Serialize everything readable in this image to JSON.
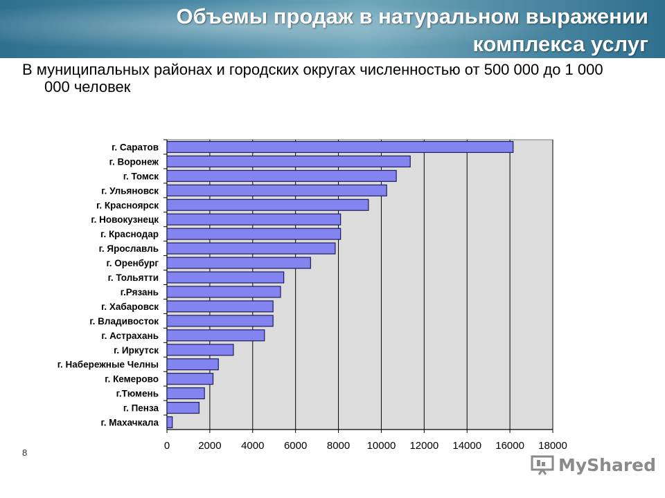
{
  "slide": {
    "title_line1": "Объемы продаж в натуральном выражении",
    "title_line2": "комплекса услуг",
    "subtitle": "В муниципальных районах и городских округах численностью от 500 000 до 1 000 000 человек",
    "page_number": "8",
    "watermark": "MyShared"
  },
  "colors": {
    "bar_fill": "#8484f0",
    "bar_stroke": "#1c1c5a",
    "plot_bg": "#dcdcdc",
    "header_accent": "#2e6f8e"
  },
  "chart_data": {
    "type": "bar",
    "orientation": "horizontal",
    "categories": [
      "г. Саратов",
      "г. Воронеж",
      "г. Томск",
      "г. Ульяновск",
      "г. Красноярск",
      "г. Новокузнецк",
      "г. Краснодар",
      "г. Ярославль",
      "г. Оренбург",
      "г. Тольятти",
      "г.Рязань",
      "г. Хабаровск",
      "г. Владивосток",
      "г. Астрахань",
      "г. Иркутск",
      "г. Набережные Челны",
      "г. Кемерово",
      "г.Тюмень",
      "г. Пенза",
      "г. Махачкала"
    ],
    "values": [
      16150,
      11350,
      10700,
      10250,
      9400,
      8100,
      8100,
      7850,
      6700,
      5450,
      5300,
      4950,
      4950,
      4550,
      3100,
      2400,
      2150,
      1750,
      1500,
      250
    ],
    "xlim": [
      0,
      18000
    ],
    "xticks": [
      "0",
      "2000",
      "4000",
      "6000",
      "8000",
      "10000",
      "12000",
      "14000",
      "16000",
      "18000"
    ],
    "grid": true,
    "legend": "none"
  }
}
